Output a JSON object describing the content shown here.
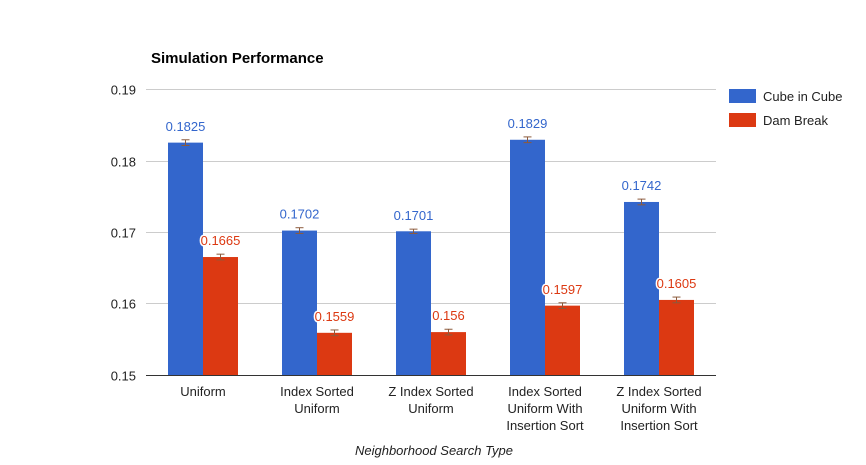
{
  "chart_data": {
    "type": "bar",
    "title": "Simulation Performance",
    "xlabel": "Neighborhood Search Type",
    "ylabel": "",
    "ylim": [
      0.15,
      0.19
    ],
    "yticks": [
      "0.19",
      "0.18",
      "0.17",
      "0.16",
      "0.15"
    ],
    "ytick_values": [
      0.19,
      0.18,
      0.17,
      0.16,
      0.15
    ],
    "grid": true,
    "legend_position": "right",
    "categories": [
      [
        "Uniform"
      ],
      [
        "Index Sorted",
        "Uniform"
      ],
      [
        "Z Index Sorted",
        "Uniform"
      ],
      [
        "Index Sorted",
        "Uniform With",
        "Insertion Sort"
      ],
      [
        "Z Index Sorted",
        "Uniform With",
        "Insertion Sort"
      ]
    ],
    "series": [
      {
        "name": "Cube in Cube",
        "color": "#3366cc",
        "values": [
          0.1825,
          0.1702,
          0.1701,
          0.1829,
          0.1742
        ],
        "labels": [
          "0.1825",
          "0.1702",
          "0.1701",
          "0.1829",
          "0.1742"
        ],
        "errors": [
          0.0004,
          0.0004,
          0.0003,
          0.0004,
          0.0004
        ]
      },
      {
        "name": "Dam Break",
        "color": "#dc3912",
        "values": [
          0.1665,
          0.1559,
          0.156,
          0.1597,
          0.1605
        ],
        "labels": [
          "0.1665",
          "0.1559",
          "0.156",
          "0.1597",
          "0.1605"
        ],
        "errors": [
          0.0004,
          0.0004,
          0.0004,
          0.0004,
          0.0004
        ]
      }
    ]
  }
}
